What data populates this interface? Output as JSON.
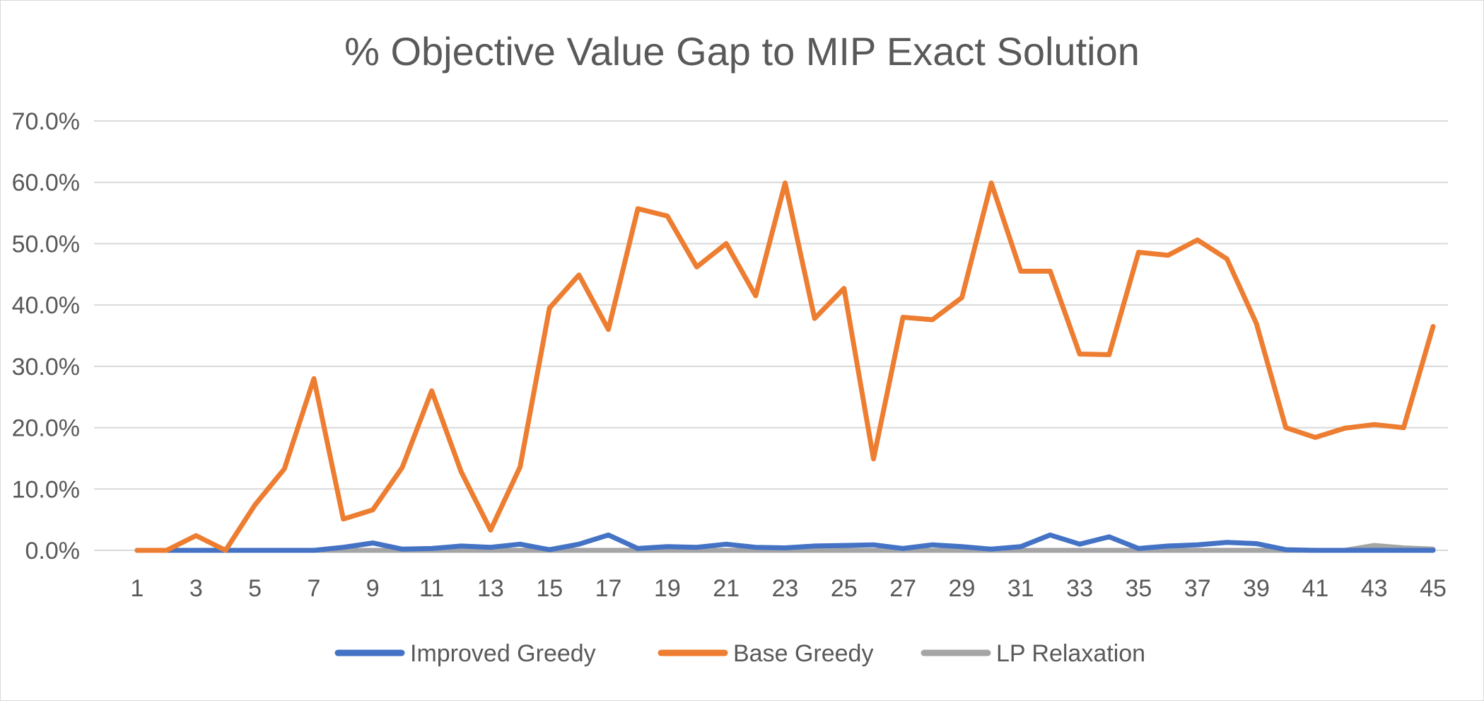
{
  "chart_data": {
    "type": "line",
    "title": "% Objective Value Gap to MIP Exact Solution",
    "xlabel": "",
    "ylabel": "",
    "x": [
      1,
      2,
      3,
      4,
      5,
      6,
      7,
      8,
      9,
      10,
      11,
      12,
      13,
      14,
      15,
      16,
      17,
      18,
      19,
      20,
      21,
      22,
      23,
      24,
      25,
      26,
      27,
      28,
      29,
      30,
      31,
      32,
      33,
      34,
      35,
      36,
      37,
      38,
      39,
      40,
      41,
      42,
      43,
      44,
      45
    ],
    "x_tick_labels": [
      "1",
      "3",
      "5",
      "7",
      "9",
      "11",
      "13",
      "15",
      "17",
      "19",
      "21",
      "23",
      "25",
      "27",
      "29",
      "31",
      "33",
      "35",
      "37",
      "39",
      "41",
      "43",
      "45"
    ],
    "ylim": [
      0,
      0.7
    ],
    "y_ticks": [
      0,
      0.1,
      0.2,
      0.3,
      0.4,
      0.5,
      0.6,
      0.7
    ],
    "y_tick_labels": [
      "0.0%",
      "10.0%",
      "20.0%",
      "30.0%",
      "40.0%",
      "50.0%",
      "60.0%",
      "70.0%"
    ],
    "grid": true,
    "legend_position": "bottom",
    "series": [
      {
        "name": "Improved Greedy",
        "color": "#4472C4",
        "values": [
          0,
          0,
          0,
          0,
          0,
          0,
          0,
          0.005,
          0.012,
          0.002,
          0.003,
          0.007,
          0.005,
          0.01,
          0.001,
          0.01,
          0.025,
          0.003,
          0.006,
          0.005,
          0.01,
          0.005,
          0.004,
          0.007,
          0.008,
          0.009,
          0.003,
          0.009,
          0.006,
          0.002,
          0.006,
          0.025,
          0.01,
          0.022,
          0.003,
          0.007,
          0.009,
          0.013,
          0.011,
          0.001,
          0,
          0,
          0,
          0,
          0
        ]
      },
      {
        "name": "Base Greedy",
        "color": "#ED7D31",
        "values": [
          0,
          0,
          0.024,
          0,
          0.074,
          0.133,
          0.28,
          0.051,
          0.066,
          0.135,
          0.26,
          0.128,
          0.033,
          0.136,
          0.395,
          0.449,
          0.36,
          0.557,
          0.545,
          0.462,
          0.5,
          0.415,
          0.599,
          0.378,
          0.427,
          0.149,
          0.38,
          0.376,
          0.412,
          0.599,
          0.455,
          0.455,
          0.32,
          0.319,
          0.486,
          0.481,
          0.506,
          0.475,
          0.37,
          0.2,
          0.184,
          0.199,
          0.205,
          0.2,
          0.365
        ]
      },
      {
        "name": "LP Relaxation",
        "color": "#A5A5A5",
        "values": [
          0,
          0,
          0,
          0,
          0,
          0,
          0,
          0,
          0,
          0,
          0,
          0,
          0,
          0,
          0,
          0,
          0,
          0,
          0,
          0,
          0,
          0,
          0,
          0,
          0,
          0,
          0,
          0,
          0,
          0,
          0,
          0,
          0,
          0,
          0,
          0,
          0,
          0,
          0,
          0,
          0,
          0,
          0.008,
          0.004,
          0.002
        ]
      }
    ]
  }
}
